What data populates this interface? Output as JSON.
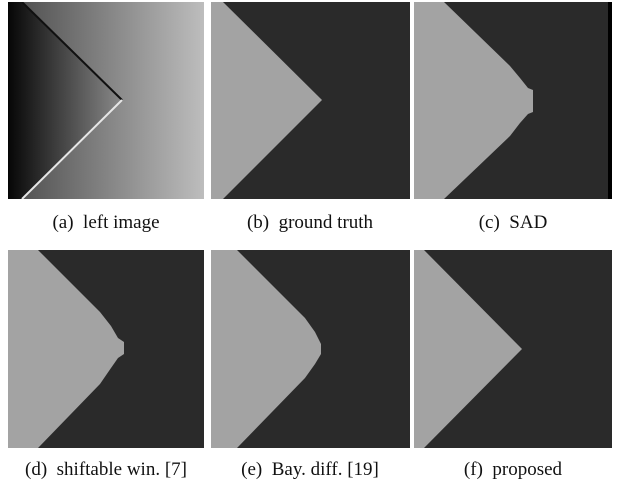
{
  "figure": {
    "panels": [
      {
        "label": "(a)",
        "caption": "left image"
      },
      {
        "label": "(b)",
        "caption": "ground truth"
      },
      {
        "label": "(c)",
        "caption": "SAD"
      },
      {
        "label": "(d)",
        "caption": "shiftable win. [7]"
      },
      {
        "label": "(e)",
        "caption": "Bay. diff. [19]"
      },
      {
        "label": "(f)",
        "caption": "proposed"
      }
    ],
    "colors": {
      "background_region": "#2a2a2a",
      "foreground_region": "#a3a3a3",
      "border_dark": "#000000"
    }
  }
}
